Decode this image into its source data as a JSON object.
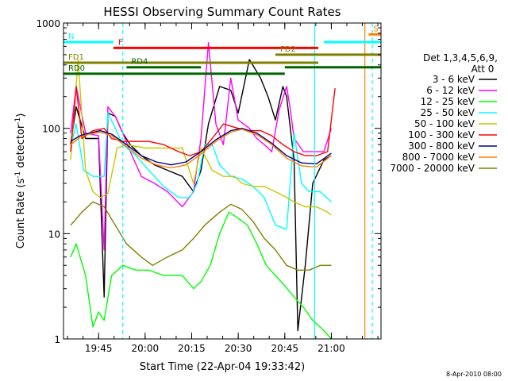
{
  "chart_data": {
    "type": "line",
    "title": "HESSI Observing Summary Count Rates",
    "xlabel": "Start Time (22-Apr-04 19:33:42)",
    "ylabel_main": "Count Rate (s",
    "ylabel_sup1": "-1",
    "ylabel_mid": " detector",
    "ylabel_sup2": "-1",
    "ylabel_end": ")",
    "yscale": "log",
    "ylim": [
      1,
      1000
    ],
    "xlim": [
      19.5617,
      21.2667
    ],
    "x_tick_labels": [
      "19:45",
      "20:00",
      "20:15",
      "20:30",
      "20:45",
      "21:00"
    ],
    "x_tick_values": [
      19.75,
      20.0,
      20.25,
      20.5,
      20.75,
      21.0
    ],
    "y_tick_labels": [
      "1",
      "10",
      "100",
      "1000"
    ],
    "y_tick_values": [
      1,
      10,
      100,
      1000
    ],
    "legend_title": [
      "Det 1,3,4,5,6,9,",
      "Att 0"
    ],
    "legend_placement": "right",
    "date_stamp": "8-Apr-2010 08:00",
    "series": [
      {
        "name": "3 - 6 keV",
        "color": "#000000",
        "x": [
          19.6,
          19.63,
          19.68,
          19.75,
          19.78,
          19.8,
          19.84,
          19.88,
          19.92,
          19.98,
          20.05,
          20.12,
          20.2,
          20.26,
          20.3,
          20.34,
          20.4,
          20.46,
          20.5,
          20.56,
          20.62,
          20.66,
          20.7,
          20.74,
          20.76,
          20.78,
          20.8,
          20.82,
          20.86,
          20.9,
          20.96,
          21.0
        ],
        "values": [
          70,
          160,
          80,
          80,
          2.5,
          140,
          130,
          90,
          70,
          55,
          45,
          40,
          35,
          25,
          40,
          110,
          250,
          230,
          140,
          450,
          300,
          200,
          120,
          250,
          200,
          100,
          50,
          1.2,
          5,
          30,
          50,
          55
        ]
      },
      {
        "name": "6 - 12 keV",
        "color": "#ff00ff",
        "x": [
          19.6,
          19.63,
          19.68,
          19.75,
          19.78,
          19.8,
          19.84,
          19.88,
          19.92,
          19.98,
          20.05,
          20.12,
          20.2,
          20.26,
          20.3,
          20.34,
          20.38,
          20.42,
          20.46,
          20.5,
          20.56,
          20.6,
          20.64,
          20.68,
          20.72,
          20.76,
          20.78,
          20.8,
          20.85,
          20.9,
          20.96,
          21.0
        ],
        "values": [
          90,
          250,
          90,
          85,
          7,
          160,
          130,
          90,
          60,
          35,
          30,
          25,
          18,
          25,
          80,
          650,
          110,
          70,
          300,
          120,
          100,
          80,
          70,
          60,
          150,
          250,
          150,
          80,
          60,
          60,
          60,
          100
        ]
      },
      {
        "name": "12 - 25 keV",
        "color": "#00ff00",
        "x": [
          19.6,
          19.63,
          19.68,
          19.72,
          19.75,
          19.78,
          19.82,
          19.88,
          19.95,
          20.02,
          20.1,
          20.2,
          20.26,
          20.3,
          20.35,
          20.4,
          20.45,
          20.5,
          20.55,
          20.6,
          20.65,
          20.7,
          20.75,
          20.8,
          20.85,
          20.9,
          20.96,
          21.0
        ],
        "values": [
          6,
          8,
          4,
          1.3,
          1.8,
          1.5,
          4,
          5,
          4.5,
          4.5,
          4,
          4,
          3,
          3.5,
          5,
          10,
          16,
          14,
          12,
          8,
          5,
          4,
          3.2,
          2.5,
          2,
          1.5,
          1.2,
          1
        ]
      },
      {
        "name": "25 - 50 keV",
        "color": "#00ffff",
        "x": [
          19.6,
          19.63,
          19.67,
          19.72,
          19.78,
          19.8,
          19.84,
          19.88,
          19.95,
          20.02,
          20.1,
          20.18,
          20.24,
          20.28,
          20.32,
          20.36,
          20.4,
          20.46,
          20.52,
          20.58,
          20.64,
          20.7,
          20.76,
          20.8,
          20.84,
          20.88,
          20.94,
          21.0
        ],
        "values": [
          65,
          110,
          40,
          35,
          35,
          140,
          100,
          70,
          55,
          40,
          28,
          22,
          22,
          30,
          70,
          70,
          45,
          35,
          33,
          28,
          22,
          12,
          11,
          90,
          30,
          25,
          25,
          20
        ]
      },
      {
        "name": "50 - 100 keV",
        "color": "#c8c800",
        "x": [
          19.6,
          19.64,
          19.68,
          19.72,
          19.76,
          19.8,
          19.85,
          19.9,
          20.0,
          20.1,
          20.2,
          20.26,
          20.3,
          20.36,
          20.42,
          20.48,
          20.52,
          20.58,
          20.64,
          20.7,
          20.76,
          20.8,
          20.86,
          20.92,
          20.98,
          21.0
        ],
        "values": [
          50,
          450,
          40,
          25,
          22,
          24,
          65,
          70,
          65,
          65,
          65,
          30,
          65,
          40,
          35,
          35,
          30,
          28,
          28,
          25,
          22,
          20,
          18,
          18,
          16,
          15
        ]
      },
      {
        "name": "100 - 300 keV",
        "color": "#ff0000",
        "x": [
          19.6,
          19.63,
          19.66,
          19.72,
          19.78,
          19.82,
          19.88,
          19.95,
          20.02,
          20.1,
          20.18,
          20.24,
          20.3,
          20.36,
          20.42,
          20.5,
          20.56,
          20.62,
          20.68,
          20.74,
          20.8,
          20.86,
          20.92,
          20.98,
          21.02
        ],
        "values": [
          60,
          250,
          80,
          95,
          100,
          80,
          75,
          75,
          75,
          70,
          60,
          55,
          60,
          80,
          110,
          100,
          95,
          95,
          85,
          70,
          60,
          55,
          55,
          60,
          240
        ]
      },
      {
        "name": "300 - 800 keV",
        "color": "#000080",
        "x": [
          19.6,
          19.65,
          19.7,
          19.76,
          19.82,
          19.9,
          19.98,
          20.06,
          20.14,
          20.22,
          20.3,
          20.38,
          20.46,
          20.52,
          20.6,
          20.68,
          20.76,
          20.84,
          20.92,
          21.0
        ],
        "values": [
          75,
          85,
          90,
          95,
          88,
          70,
          55,
          48,
          45,
          48,
          60,
          78,
          95,
          100,
          90,
          72,
          55,
          47,
          46,
          58
        ]
      },
      {
        "name": "800 - 7000 keV",
        "color": "#ff8000",
        "x": [
          19.6,
          19.65,
          19.7,
          19.76,
          19.82,
          19.9,
          19.98,
          20.06,
          20.14,
          20.22,
          20.3,
          20.38,
          20.46,
          20.52,
          20.6,
          20.68,
          20.76,
          20.84,
          20.92,
          21.0
        ],
        "values": [
          70,
          82,
          88,
          92,
          85,
          67,
          52,
          45,
          42,
          45,
          57,
          75,
          92,
          98,
          87,
          70,
          52,
          44,
          43,
          55
        ]
      },
      {
        "name": "7000 - 20000 keV",
        "color": "#808000",
        "x": [
          19.6,
          19.66,
          19.72,
          19.78,
          19.84,
          19.9,
          19.98,
          20.04,
          20.12,
          20.2,
          20.26,
          20.32,
          20.4,
          20.46,
          20.52,
          20.58,
          20.64,
          20.7,
          20.76,
          20.82,
          20.88,
          20.94,
          21.0
        ],
        "values": [
          12,
          16,
          20,
          18,
          12,
          8,
          6,
          5,
          6,
          7,
          9,
          12,
          16,
          19,
          17,
          13,
          9,
          7,
          5,
          4.5,
          4.5,
          5,
          5
        ]
      }
    ],
    "annotations": [
      {
        "label": "N",
        "color": "#00ffff",
        "x1": 19.5617,
        "x2": 19.83,
        "y": 660
      },
      {
        "label": "F",
        "color": "#ff0000",
        "x1": 19.83,
        "x2": 20.93,
        "y": 580
      },
      {
        "label": "FD1",
        "color": "#808000",
        "x1": 19.5617,
        "x2": 20.93,
        "y": 420
      },
      {
        "label": "FD2",
        "color": "#808000",
        "x1": 20.7,
        "x2": 21.2667,
        "y": 500
      },
      {
        "label": "RD0",
        "color": "#006400",
        "x1": 19.5617,
        "x2": 20.3,
        "y": 330
      },
      {
        "label": "RD4",
        "color": "#006400",
        "x1": 19.9,
        "x2": 20.3,
        "y": 380
      },
      {
        "label": "",
        "color": "#006400",
        "x1": 20.3,
        "x2": 20.75,
        "y": 330
      },
      {
        "label": "",
        "color": "#006400",
        "x1": 20.75,
        "x2": 21.2667,
        "y": 380
      },
      {
        "label": "",
        "color": "#00ffff",
        "x1": 20.96,
        "x2": 21.2667,
        "y": 660
      },
      {
        "label": "S",
        "color": "#ff8000",
        "x1": 21.2,
        "x2": 21.2667,
        "y": 780
      }
    ],
    "vertical_markers": [
      {
        "x": 19.88,
        "color": "#00ffff",
        "style": "dashed"
      },
      {
        "x": 20.91,
        "color": "#00ffff",
        "style": "solid"
      },
      {
        "x": 21.18,
        "color": "#ff8000",
        "style": "solid"
      },
      {
        "x": 21.22,
        "color": "#00ffff",
        "style": "dashed"
      }
    ]
  }
}
